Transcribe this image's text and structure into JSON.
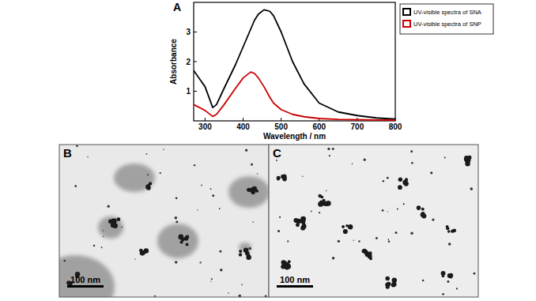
{
  "chart_data": {
    "type": "line",
    "panel_label": "A",
    "x_label": "Wavelength / nm",
    "y_label": "Absorbance",
    "x": [
      270,
      300,
      320,
      330,
      350,
      380,
      400,
      420,
      430,
      440,
      455,
      470,
      480,
      500,
      530,
      560,
      600,
      650,
      700,
      750,
      800
    ],
    "series": [
      {
        "name": "UV-visible spectra of SNA",
        "color": "#000000",
        "values": [
          1.7,
          1.15,
          0.45,
          0.55,
          1.1,
          1.9,
          2.5,
          3.1,
          3.4,
          3.6,
          3.75,
          3.7,
          3.55,
          3.0,
          2.0,
          1.25,
          0.6,
          0.3,
          0.18,
          0.1,
          0.06
        ]
      },
      {
        "name": "UV-visible spectra of SNP",
        "color": "#cc0000",
        "values": [
          0.55,
          0.35,
          0.15,
          0.22,
          0.55,
          1.1,
          1.45,
          1.65,
          1.6,
          1.45,
          1.15,
          0.8,
          0.6,
          0.38,
          0.22,
          0.14,
          0.08,
          0.05,
          0.04,
          0.03,
          0.02
        ]
      }
    ],
    "xlim": [
      270,
      800
    ],
    "ylim": [
      0,
      4
    ],
    "xticks": [
      300,
      400,
      500,
      600,
      700,
      800
    ],
    "yticks": [
      1,
      2,
      3
    ],
    "legend": "right",
    "grid": false
  },
  "images": [
    {
      "label": "B",
      "scale_bar": "100 nm"
    },
    {
      "label": "C",
      "scale_bar": "100 nm"
    }
  ]
}
